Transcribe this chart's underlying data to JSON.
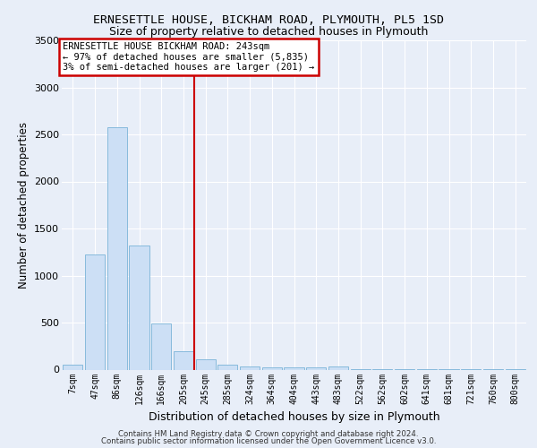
{
  "title1": "ERNESETTLE HOUSE, BICKHAM ROAD, PLYMOUTH, PL5 1SD",
  "title2": "Size of property relative to detached houses in Plymouth",
  "xlabel": "Distribution of detached houses by size in Plymouth",
  "ylabel": "Number of detached properties",
  "categories": [
    "7sqm",
    "47sqm",
    "86sqm",
    "126sqm",
    "166sqm",
    "205sqm",
    "245sqm",
    "285sqm",
    "324sqm",
    "364sqm",
    "404sqm",
    "443sqm",
    "483sqm",
    "522sqm",
    "562sqm",
    "602sqm",
    "641sqm",
    "681sqm",
    "721sqm",
    "760sqm",
    "800sqm"
  ],
  "values": [
    50,
    1220,
    2580,
    1320,
    490,
    195,
    105,
    50,
    35,
    20,
    20,
    20,
    35,
    5,
    5,
    5,
    5,
    5,
    5,
    5,
    5
  ],
  "bar_color": "#ccdff5",
  "bar_edge_color": "#7ab3d8",
  "vline_x_index": 5.5,
  "vline_color": "#cc0000",
  "annotation_text": "ERNESETTLE HOUSE BICKHAM ROAD: 243sqm\n← 97% of detached houses are smaller (5,835)\n3% of semi-detached houses are larger (201) →",
  "annotation_box_color": "#ffffff",
  "annotation_box_edge": "#cc0000",
  "ylim": [
    0,
    3500
  ],
  "yticks": [
    0,
    500,
    1000,
    1500,
    2000,
    2500,
    3000,
    3500
  ],
  "fig_bg_color": "#e8eef8",
  "plot_bg_color": "#e8eef8",
  "grid_color": "#ffffff",
  "footer1": "Contains HM Land Registry data © Crown copyright and database right 2024.",
  "footer2": "Contains public sector information licensed under the Open Government Licence v3.0.",
  "title1_fontsize": 9.5,
  "title2_fontsize": 9.0,
  "ylabel_fontsize": 8.5,
  "xlabel_fontsize": 9.0,
  "tick_fontsize": 7.0,
  "annotation_fontsize": 7.5,
  "footer_fontsize": 6.2
}
